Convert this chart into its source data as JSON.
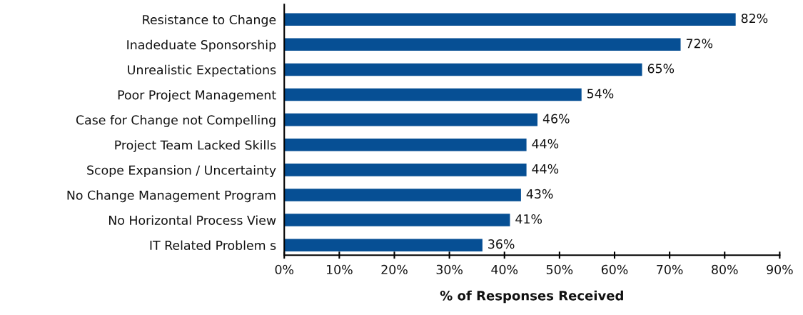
{
  "chart_data": {
    "type": "bar",
    "orientation": "horizontal",
    "xlabel": "% of Responses Received",
    "categories": [
      "Resistance to Change",
      "Inadeduate Sponsorship",
      "Unrealistic Expectations",
      "Poor Project Management",
      "Case for Change not Compelling",
      "Project Team Lacked Skills",
      "Scope Expansion / Uncertainty",
      "No Change Management Program",
      "No Horizontal Process View",
      "IT Related Problem s"
    ],
    "values": [
      82,
      72,
      65,
      54,
      46,
      44,
      44,
      43,
      41,
      36
    ],
    "value_labels": [
      "82%",
      "72%",
      "65%",
      "54%",
      "46%",
      "44%",
      "44%",
      "43%",
      "41%",
      "36%"
    ],
    "color": "#064f94",
    "xlim": [
      0,
      90
    ],
    "xticks": [
      {
        "value": 0,
        "label": "0%"
      },
      {
        "value": 10,
        "label": "10%"
      },
      {
        "value": 20,
        "label": "20%"
      },
      {
        "value": 30,
        "label": "30%"
      },
      {
        "value": 40,
        "label": "40%"
      },
      {
        "value": 50,
        "label": "50%"
      },
      {
        "value": 60,
        "label": "60%"
      },
      {
        "value": 70,
        "label": "70%"
      },
      {
        "value": 80,
        "label": "80%"
      },
      {
        "value": 90,
        "label": "90%"
      }
    ],
    "grid": false,
    "legend": false
  }
}
